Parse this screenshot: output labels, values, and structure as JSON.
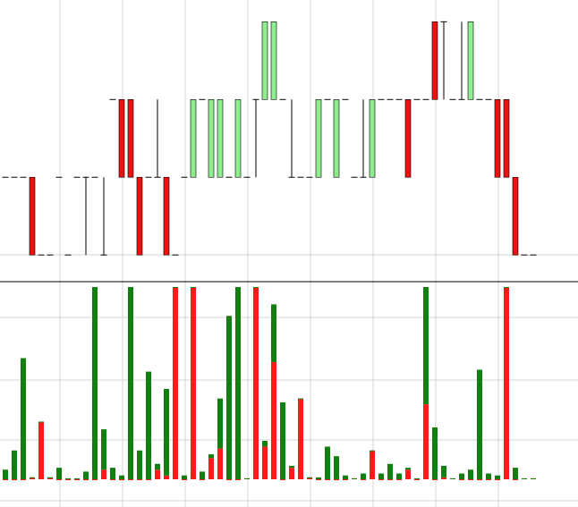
{
  "chart_data": [
    {
      "type": "candlestick",
      "open": [
        2,
        2,
        2,
        2,
        1,
        1,
        2,
        1,
        2,
        2,
        2,
        1,
        3,
        3,
        3,
        2,
        2,
        2,
        2,
        1,
        2,
        2,
        3,
        2,
        2,
        2,
        2,
        2,
        3,
        3,
        3,
        3,
        2,
        2,
        2,
        2,
        3,
        2,
        3,
        2,
        2,
        2,
        3,
        3,
        3,
        3,
        3,
        3,
        4,
        4,
        3,
        3,
        3,
        3,
        3,
        3,
        3,
        2,
        1,
        1
      ],
      "high": [
        2,
        2,
        2,
        2,
        1,
        1,
        2,
        1,
        2,
        2,
        2,
        2,
        3,
        3,
        3,
        2,
        2,
        3,
        2,
        1,
        2,
        3,
        3,
        3,
        3,
        2,
        3,
        2,
        3,
        4,
        4,
        3,
        3,
        2,
        2,
        3,
        3,
        3,
        3,
        2,
        3,
        3,
        3,
        3,
        3,
        3,
        3,
        3,
        4,
        4,
        3,
        4,
        4,
        3,
        3,
        3,
        3,
        2,
        1,
        1
      ],
      "low": [
        2,
        2,
        2,
        1,
        1,
        1,
        2,
        1,
        2,
        1,
        2,
        1,
        3,
        2,
        2,
        1,
        2,
        2,
        1,
        1,
        2,
        2,
        3,
        2,
        2,
        2,
        2,
        2,
        2,
        3,
        3,
        3,
        2,
        2,
        2,
        2,
        3,
        2,
        3,
        2,
        2,
        2,
        3,
        3,
        3,
        2,
        3,
        3,
        3,
        3,
        3,
        3,
        3,
        3,
        3,
        2,
        2,
        1,
        1,
        1
      ],
      "close": [
        2,
        2,
        2,
        1,
        1,
        1,
        2,
        1,
        2,
        2,
        2,
        1,
        3,
        2,
        2,
        1,
        2,
        2,
        1,
        1,
        2,
        3,
        3,
        3,
        3,
        2,
        3,
        2,
        3,
        4,
        4,
        3,
        2,
        2,
        2,
        3,
        3,
        3,
        3,
        2,
        2,
        3,
        3,
        3,
        3,
        2,
        3,
        3,
        3,
        4,
        3,
        3,
        4,
        3,
        3,
        2,
        2,
        1,
        1,
        1
      ],
      "up_color": "#90ee90",
      "down_color": "#ee1111",
      "doji_color": "#000000",
      "ylim": [
        0.68,
        4.28
      ]
    },
    {
      "type": "stacked-bar",
      "series": [
        {
          "color": "#ff1a1a",
          "values": [
            0,
            0,
            0,
            1,
            30,
            1,
            0,
            0,
            0,
            0,
            0,
            5,
            0,
            0,
            0,
            0,
            0,
            5,
            2,
            100,
            0,
            100,
            0,
            11,
            16,
            0,
            0,
            0.5,
            100,
            17,
            61,
            0,
            6,
            42,
            1,
            0,
            0,
            0,
            0,
            0.5,
            0,
            15,
            0,
            0,
            0,
            5,
            0,
            39,
            0,
            1,
            0.5,
            0,
            0,
            0,
            0,
            0,
            100,
            0,
            0.5,
            0.5
          ]
        },
        {
          "color": "#118011",
          "values": [
            5,
            15,
            63,
            0,
            0,
            0,
            6,
            0.5,
            0.5,
            4,
            100,
            21,
            6,
            2,
            100,
            15,
            56,
            3,
            45,
            0,
            2,
            0,
            4,
            2,
            26,
            85,
            100,
            0,
            0,
            3,
            30,
            40,
            1,
            0,
            0,
            1,
            17,
            12,
            2,
            0,
            3,
            0,
            3,
            8,
            3,
            1,
            0.5,
            61,
            27,
            6,
            0,
            3,
            5,
            57,
            3,
            2,
            0,
            6,
            0,
            0
          ]
        }
      ],
      "ylim": [
        0,
        100
      ]
    }
  ]
}
